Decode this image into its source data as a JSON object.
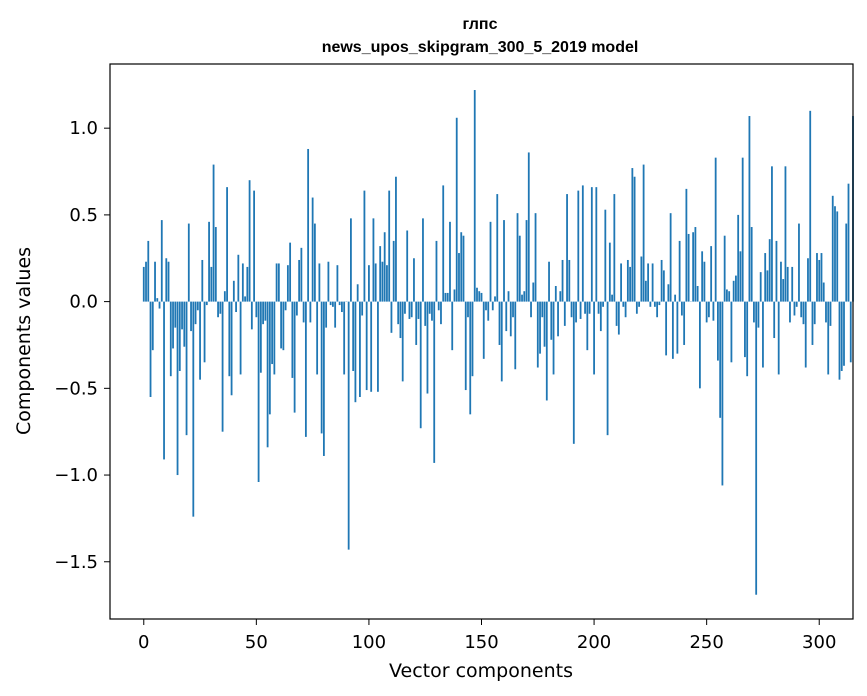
{
  "chart_data": {
    "type": "bar",
    "title_line1": "глпс",
    "title_line2": "news_upos_skipgram_300_5_2019 model",
    "xlabel": "Vector components",
    "ylabel": "Components values",
    "xlim": [
      -15,
      315
    ],
    "ylim": [
      -1.83,
      1.37
    ],
    "x_ticks": [
      0,
      50,
      100,
      150,
      200,
      250,
      300
    ],
    "x_tick_labels": [
      "0",
      "50",
      "100",
      "150",
      "200",
      "250",
      "300"
    ],
    "y_ticks": [
      -1.5,
      -1.0,
      -0.5,
      0.0,
      0.5,
      1.0
    ],
    "y_tick_labels": [
      "−1.5",
      "−1.0",
      "−0.5",
      "0.0",
      "0.5",
      "1.0"
    ],
    "bar_color": "#1f77b4",
    "values": [
      0.2,
      0.23,
      0.35,
      -0.55,
      -0.28,
      0.23,
      0.02,
      -0.04,
      0.47,
      -0.91,
      0.25,
      0.23,
      -0.43,
      -0.27,
      -0.15,
      -1.0,
      -0.4,
      -0.16,
      -0.26,
      -0.77,
      0.45,
      -0.17,
      -1.24,
      -0.13,
      -0.05,
      -0.45,
      0.24,
      -0.35,
      -0.02,
      0.46,
      0.2,
      0.79,
      0.43,
      -0.09,
      -0.07,
      -0.75,
      0.06,
      0.66,
      -0.43,
      -0.54,
      0.12,
      -0.06,
      0.27,
      -0.42,
      0.22,
      0.03,
      0.2,
      0.7,
      -0.16,
      0.64,
      -0.09,
      -1.04,
      -0.41,
      -0.13,
      -0.11,
      -0.84,
      -0.65,
      -0.36,
      -0.42,
      0.22,
      0.22,
      -0.27,
      -0.28,
      -0.05,
      0.21,
      0.34,
      -0.44,
      -0.64,
      -0.08,
      0.24,
      0.31,
      -0.12,
      -0.78,
      0.88,
      -0.12,
      0.6,
      0.45,
      -0.42,
      0.22,
      -0.76,
      -0.89,
      -0.15,
      0.23,
      -0.02,
      -0.03,
      -0.15,
      0.21,
      -0.02,
      -0.06,
      -0.42,
      0.0,
      -1.43,
      0.48,
      -0.4,
      -0.58,
      0.1,
      -0.55,
      -0.08,
      0.64,
      -0.51,
      0.21,
      -0.52,
      0.48,
      0.22,
      -0.52,
      0.32,
      0.23,
      0.4,
      0.21,
      0.64,
      -0.18,
      0.35,
      0.72,
      -0.13,
      -0.21,
      -0.46,
      -0.07,
      0.41,
      -0.1,
      -0.09,
      0.25,
      -0.25,
      -0.1,
      -0.73,
      0.48,
      -0.14,
      -0.53,
      -0.07,
      -0.11,
      -0.93,
      0.35,
      -0.05,
      -0.13,
      0.67,
      0.05,
      0.05,
      0.46,
      -0.28,
      0.07,
      1.06,
      0.28,
      0.4,
      0.38,
      -0.51,
      -0.09,
      -0.65,
      -0.43,
      1.22,
      0.08,
      0.06,
      0.05,
      -0.33,
      -0.05,
      -0.11,
      0.46,
      -0.05,
      0.03,
      0.62,
      -0.25,
      -0.46,
      0.47,
      -0.17,
      0.06,
      -0.2,
      -0.09,
      -0.39,
      0.51,
      0.38,
      0.04,
      0.06,
      0.47,
      0.86,
      -0.09,
      0.11,
      0.51,
      -0.38,
      -0.3,
      -0.09,
      -0.26,
      -0.57,
      0.23,
      -0.22,
      -0.42,
      0.09,
      -0.2,
      0.06,
      0.24,
      -0.14,
      0.62,
      0.24,
      -0.09,
      -0.82,
      -0.12,
      0.64,
      -0.1,
      0.67,
      -0.07,
      -0.28,
      -0.07,
      0.66,
      -0.42,
      0.66,
      -0.07,
      -0.17,
      -0.03,
      0.53,
      -0.77,
      0.34,
      0.04,
      0.62,
      -0.14,
      -0.19,
      0.22,
      -0.03,
      -0.09,
      0.24,
      0.2,
      0.77,
      0.72,
      -0.07,
      -0.03,
      0.26,
      0.79,
      0.12,
      0.22,
      -0.03,
      0.22,
      -0.03,
      -0.09,
      -0.02,
      0.24,
      0.18,
      -0.31,
      0.1,
      0.51,
      -0.33,
      0.04,
      -0.3,
      0.35,
      -0.08,
      -0.25,
      0.65,
      0.39,
      0.0,
      0.4,
      0.43,
      0.09,
      -0.5,
      0.29,
      0.23,
      -0.12,
      -0.09,
      0.32,
      -0.11,
      0.83,
      -0.34,
      -0.67,
      -1.06,
      0.38,
      0.07,
      0.06,
      -0.35,
      0.12,
      0.15,
      0.5,
      0.29,
      0.83,
      -0.32,
      -0.43,
      1.07,
      0.43,
      -0.12,
      -1.69,
      -0.15,
      0.17,
      -0.38,
      0.28,
      0.18,
      0.36,
      0.78,
      -0.21,
      0.35,
      -0.42,
      0.23,
      0.13,
      0.78,
      0.2,
      -0.12,
      0.2,
      -0.08,
      -0.03,
      0.45,
      -0.09,
      -0.13,
      -0.38,
      0.25,
      1.1,
      -0.25,
      -0.13,
      0.28,
      0.24,
      0.28,
      0.11,
      -0.12,
      -0.42,
      -0.14,
      0.61,
      0.55,
      0.52,
      -0.45,
      -0.4,
      -0.37,
      0.45,
      0.68,
      -0.35,
      1.07
    ]
  }
}
